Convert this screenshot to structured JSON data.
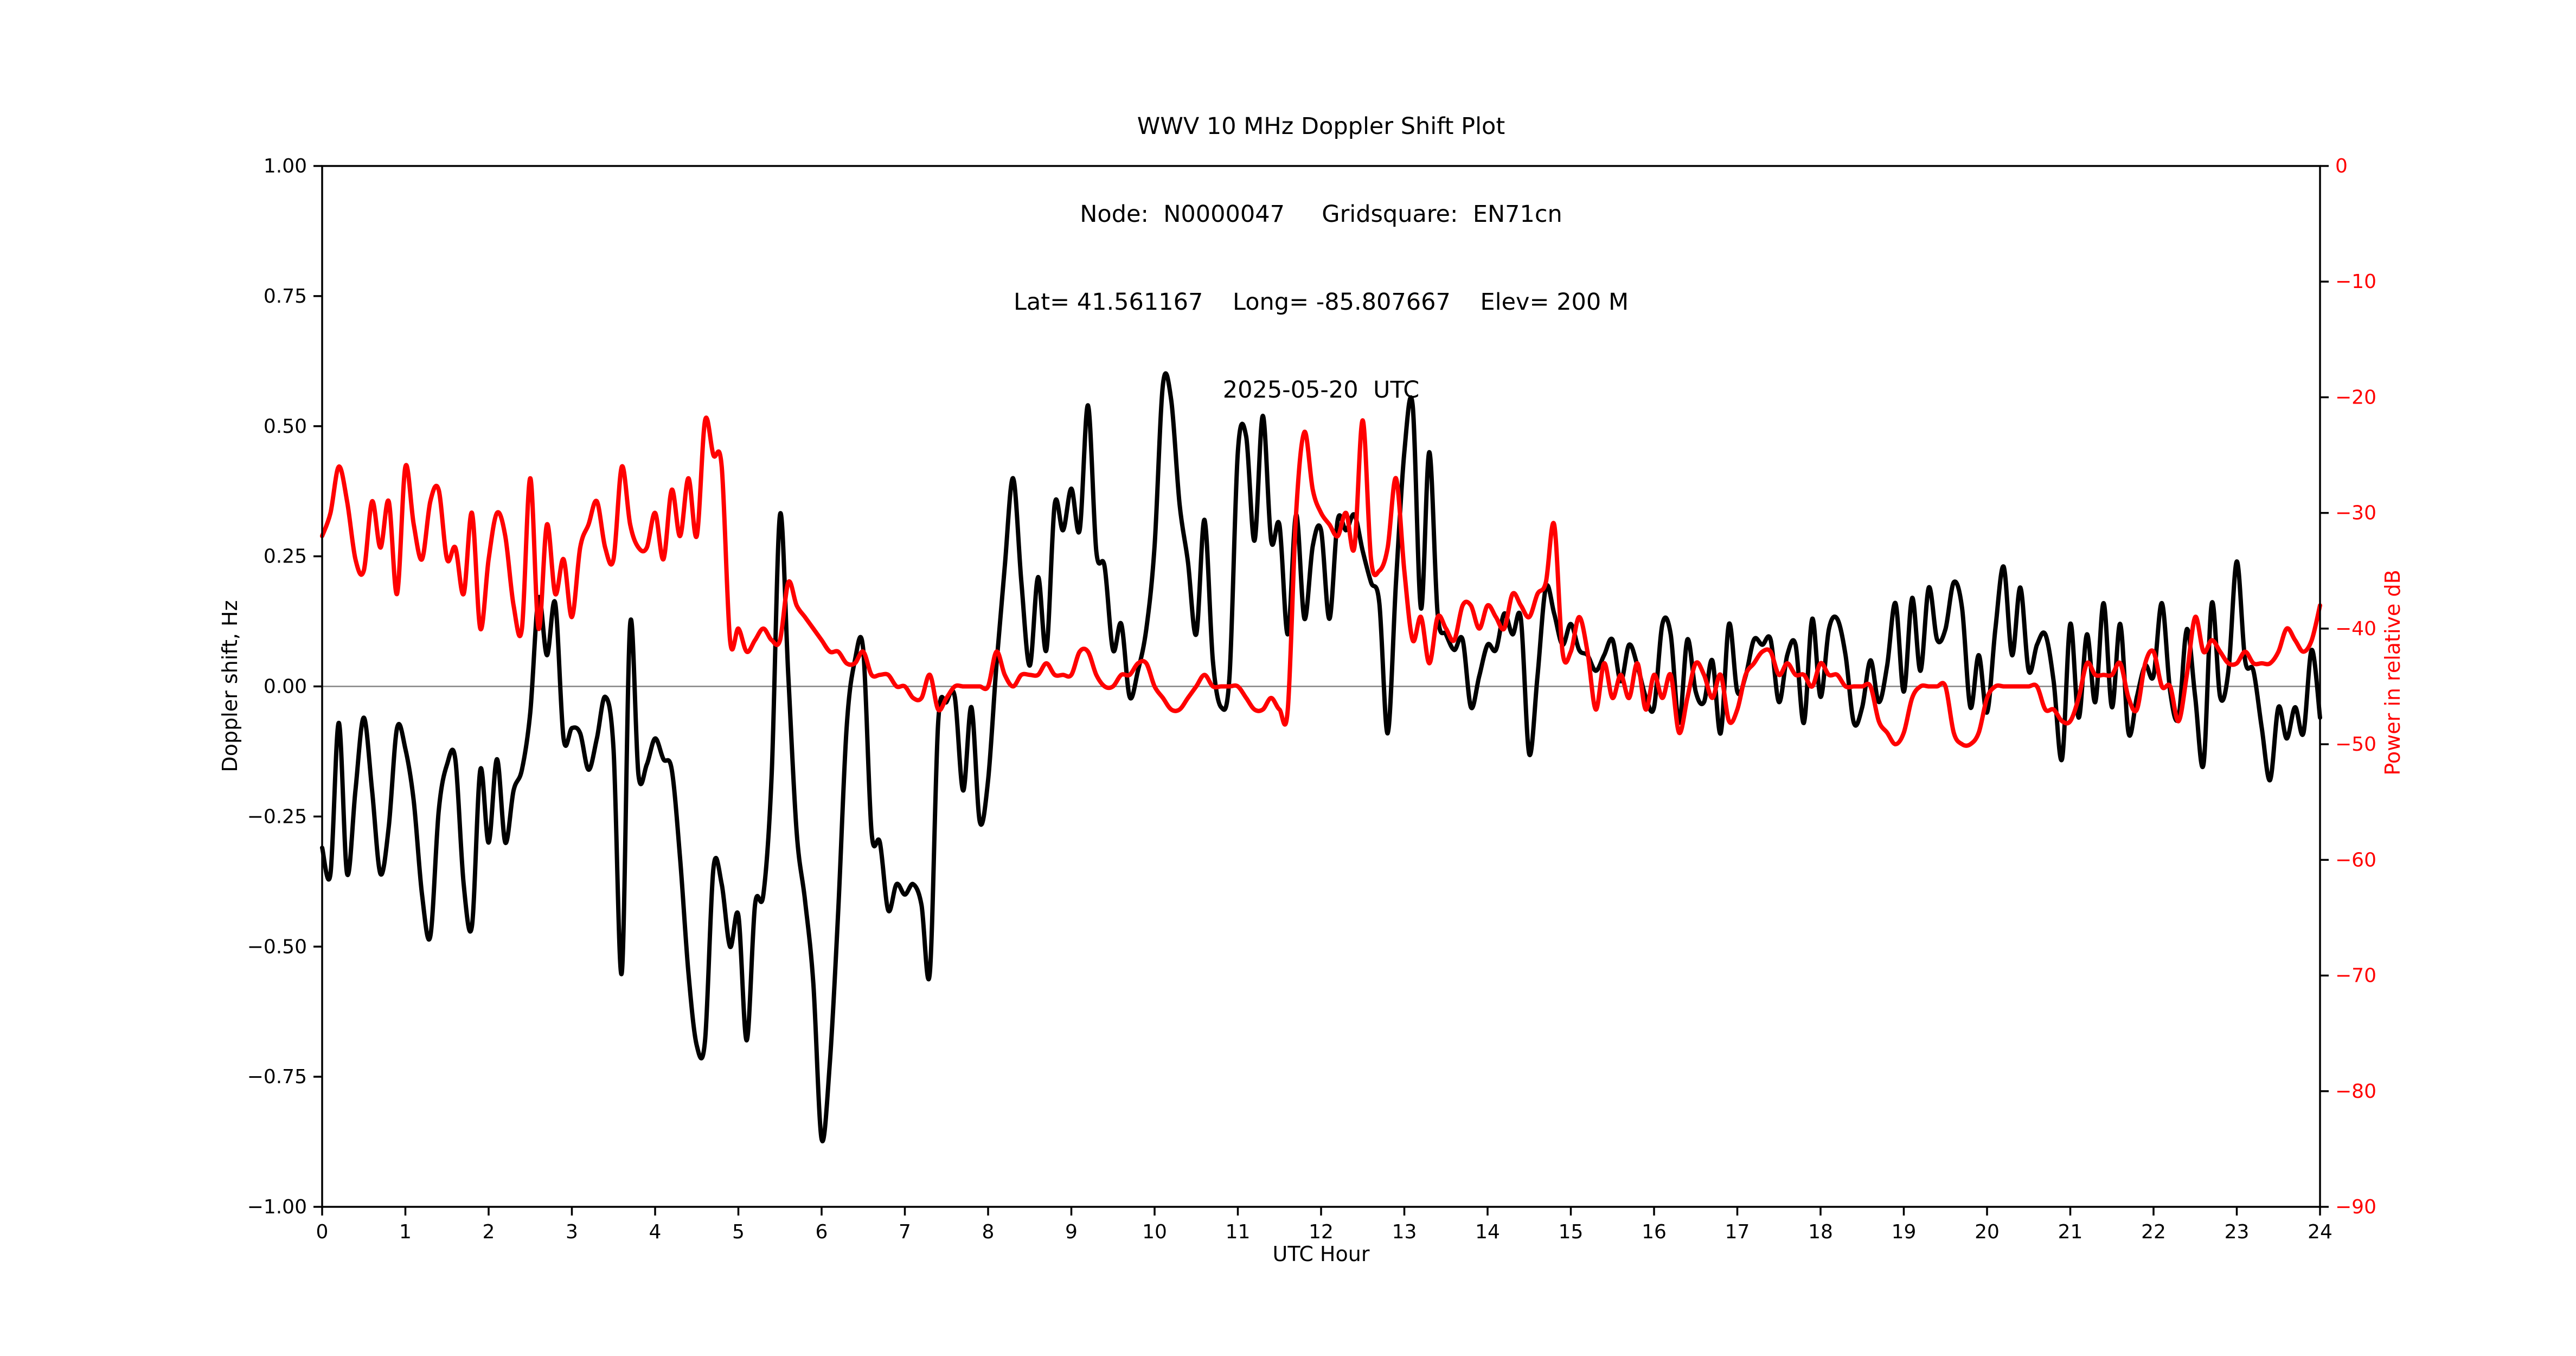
{
  "title": {
    "line1": "WWV 10 MHz Doppler Shift Plot",
    "line2": "Node:  N0000047     Gridsquare:  EN71cn",
    "line3": "Lat= 41.561167    Long= -85.807667    Elev= 200 M",
    "line4": "2025-05-20  UTC"
  },
  "colors": {
    "doppler_line": "#000000",
    "power_line": "#ff0000",
    "zero_line": "#848484",
    "axis": "#000000",
    "background": "#ffffff"
  },
  "chart_data": {
    "type": "line",
    "title": "WWV 10 MHz Doppler Shift Plot",
    "xlabel": "UTC Hour",
    "ylabel_left": "Doppler shift, Hz",
    "ylabel_right": "Power in relative dB",
    "x_range": [
      0,
      24
    ],
    "y_left_range": [
      -1.0,
      1.0
    ],
    "y_right_range": [
      -90,
      0
    ],
    "grid": "off",
    "legend": "none",
    "zero_reference_line_left": 0.0,
    "x_step": 0.1,
    "x_ticks": {
      "values": [
        0,
        1,
        2,
        3,
        4,
        5,
        6,
        7,
        8,
        9,
        10,
        11,
        12,
        13,
        14,
        15,
        16,
        17,
        18,
        19,
        20,
        21,
        22,
        23,
        24
      ],
      "labels": [
        "0",
        "1",
        "2",
        "3",
        "4",
        "5",
        "6",
        "7",
        "8",
        "9",
        "10",
        "11",
        "12",
        "13",
        "14",
        "15",
        "16",
        "17",
        "18",
        "19",
        "20",
        "21",
        "22",
        "23",
        "24"
      ]
    },
    "y_left_ticks": {
      "values": [
        1.0,
        0.75,
        0.5,
        0.25,
        0.0,
        -0.25,
        -0.5,
        -0.75,
        -1.0
      ],
      "labels": [
        "1.00",
        "0.75",
        "0.50",
        "0.25",
        "0.00",
        "−0.25",
        "−0.50",
        "−0.75",
        "−1.00"
      ]
    },
    "y_right_ticks": {
      "values": [
        0,
        -10,
        -20,
        -30,
        -40,
        -50,
        -60,
        -70,
        -80,
        -90
      ],
      "labels": [
        "0",
        "−10",
        "−20",
        "−30",
        "−40",
        "−50",
        "−60",
        "−70",
        "−80",
        "−90"
      ]
    },
    "series": [
      {
        "name": "doppler_shift_hz",
        "axis": "left",
        "color": "#000000",
        "width": 8,
        "values": [
          -0.31,
          -0.36,
          -0.07,
          -0.36,
          -0.2,
          -0.06,
          -0.2,
          -0.36,
          -0.27,
          -0.08,
          -0.12,
          -0.22,
          -0.4,
          -0.48,
          -0.24,
          -0.15,
          -0.14,
          -0.38,
          -0.46,
          -0.16,
          -0.3,
          -0.14,
          -0.3,
          -0.2,
          -0.16,
          -0.05,
          0.17,
          0.06,
          0.16,
          -0.1,
          -0.08,
          -0.09,
          -0.16,
          -0.1,
          -0.02,
          -0.12,
          -0.55,
          0.12,
          -0.17,
          -0.15,
          -0.1,
          -0.14,
          -0.16,
          -0.33,
          -0.55,
          -0.69,
          -0.68,
          -0.35,
          -0.38,
          -0.5,
          -0.44,
          -0.68,
          -0.42,
          -0.4,
          -0.17,
          0.33,
          0.02,
          -0.28,
          -0.41,
          -0.57,
          -0.87,
          -0.72,
          -0.43,
          -0.08,
          0.05,
          0.07,
          -0.28,
          -0.3,
          -0.43,
          -0.38,
          -0.4,
          -0.38,
          -0.42,
          -0.55,
          -0.07,
          -0.03,
          -0.02,
          -0.2,
          -0.04,
          -0.26,
          -0.18,
          0.04,
          0.23,
          0.4,
          0.2,
          0.04,
          0.21,
          0.07,
          0.35,
          0.3,
          0.38,
          0.3,
          0.54,
          0.26,
          0.23,
          0.07,
          0.12,
          -0.02,
          0.03,
          0.11,
          0.27,
          0.58,
          0.55,
          0.35,
          0.24,
          0.1,
          0.32,
          0.05,
          -0.04,
          0.02,
          0.45,
          0.48,
          0.28,
          0.52,
          0.28,
          0.31,
          0.1,
          0.33,
          0.13,
          0.27,
          0.3,
          0.13,
          0.32,
          0.3,
          0.33,
          0.26,
          0.2,
          0.16,
          -0.09,
          0.2,
          0.45,
          0.54,
          0.15,
          0.45,
          0.14,
          0.1,
          0.07,
          0.09,
          -0.04,
          0.02,
          0.08,
          0.07,
          0.14,
          0.1,
          0.13,
          -0.13,
          0.02,
          0.19,
          0.14,
          0.08,
          0.12,
          0.07,
          0.06,
          0.03,
          0.06,
          0.09,
          0.01,
          0.08,
          0.04,
          -0.02,
          -0.04,
          0.12,
          0.1,
          -0.07,
          0.09,
          -0.01,
          -0.03,
          0.05,
          -0.09,
          0.12,
          -0.01,
          0.02,
          0.09,
          0.08,
          0.09,
          -0.03,
          0.06,
          0.08,
          -0.07,
          0.13,
          -0.02,
          0.11,
          0.13,
          0.06,
          -0.07,
          -0.04,
          0.05,
          -0.03,
          0.04,
          0.16,
          -0.01,
          0.17,
          0.03,
          0.19,
          0.09,
          0.11,
          0.2,
          0.15,
          -0.04,
          0.06,
          -0.05,
          0.11,
          0.23,
          0.06,
          0.19,
          0.03,
          0.08,
          0.1,
          0.01,
          -0.14,
          0.12,
          -0.06,
          0.1,
          -0.03,
          0.16,
          -0.04,
          0.12,
          -0.09,
          -0.02,
          0.04,
          0.02,
          0.16,
          -0.01,
          -0.06,
          0.11,
          -0.02,
          -0.15,
          0.16,
          -0.02,
          0.03,
          0.24,
          0.05,
          0.03,
          -0.08,
          -0.18,
          -0.04,
          -0.1,
          -0.04,
          -0.09,
          0.07,
          -0.06
        ]
      },
      {
        "name": "power_rel_db",
        "axis": "right",
        "color": "#ff0000",
        "width": 8,
        "values": [
          -32,
          -30,
          -26,
          -29,
          -34,
          -35,
          -29,
          -33,
          -29,
          -37,
          -26,
          -31,
          -34,
          -29,
          -28,
          -34,
          -33,
          -37,
          -30,
          -40,
          -34,
          -30,
          -32,
          -38,
          -40,
          -27,
          -40,
          -31,
          -37,
          -34,
          -39,
          -33,
          -31,
          -29,
          -33,
          -34,
          -26,
          -31,
          -33,
          -33,
          -30,
          -34,
          -28,
          -32,
          -27,
          -32,
          -22,
          -25,
          -26,
          -41,
          -40,
          -42,
          -41,
          -40,
          -41,
          -41,
          -36,
          -38,
          -39,
          -40,
          -41,
          -42,
          -42,
          -43,
          -43,
          -42,
          -44,
          -44,
          -44,
          -45,
          -45,
          -46,
          -46,
          -44,
          -47,
          -46,
          -45,
          -45,
          -45,
          -45,
          -45,
          -42,
          -44,
          -45,
          -44,
          -44,
          -44,
          -43,
          -44,
          -44,
          -44,
          -42,
          -42,
          -44,
          -45,
          -45,
          -44,
          -44,
          -43,
          -43,
          -45,
          -46,
          -47,
          -47,
          -46,
          -45,
          -44,
          -45,
          -45,
          -45,
          -45,
          -46,
          -47,
          -47,
          -46,
          -47,
          -47,
          -30,
          -23,
          -28,
          -30,
          -31,
          -32,
          -30,
          -33,
          -22,
          -34,
          -35,
          -33,
          -27,
          -35,
          -41,
          -39,
          -43,
          -39,
          -40,
          -41,
          -38,
          -38,
          -40,
          -38,
          -39,
          -40,
          -37,
          -38,
          -39,
          -37,
          -36,
          -31,
          -42,
          -42,
          -39,
          -42,
          -47,
          -43,
          -46,
          -44,
          -46,
          -43,
          -47,
          -44,
          -46,
          -44,
          -49,
          -46,
          -43,
          -44,
          -46,
          -44,
          -48,
          -47,
          -44,
          -43,
          -42,
          -42,
          -44,
          -43,
          -44,
          -44,
          -45,
          -43,
          -44,
          -44,
          -45,
          -45,
          -45,
          -45,
          -48,
          -49,
          -50,
          -49,
          -46,
          -45,
          -45,
          -45,
          -45,
          -49,
          -50,
          -50,
          -49,
          -46,
          -45,
          -45,
          -45,
          -45,
          -45,
          -45,
          -47,
          -47,
          -48,
          -48,
          -46,
          -43,
          -44,
          -44,
          -44,
          -43,
          -46,
          -47,
          -43,
          -42,
          -45,
          -45,
          -48,
          -44,
          -39,
          -42,
          -41,
          -42,
          -43,
          -43,
          -42,
          -43,
          -43,
          -43,
          -42,
          -40,
          -41,
          -42,
          -41,
          -38
        ]
      }
    ]
  }
}
